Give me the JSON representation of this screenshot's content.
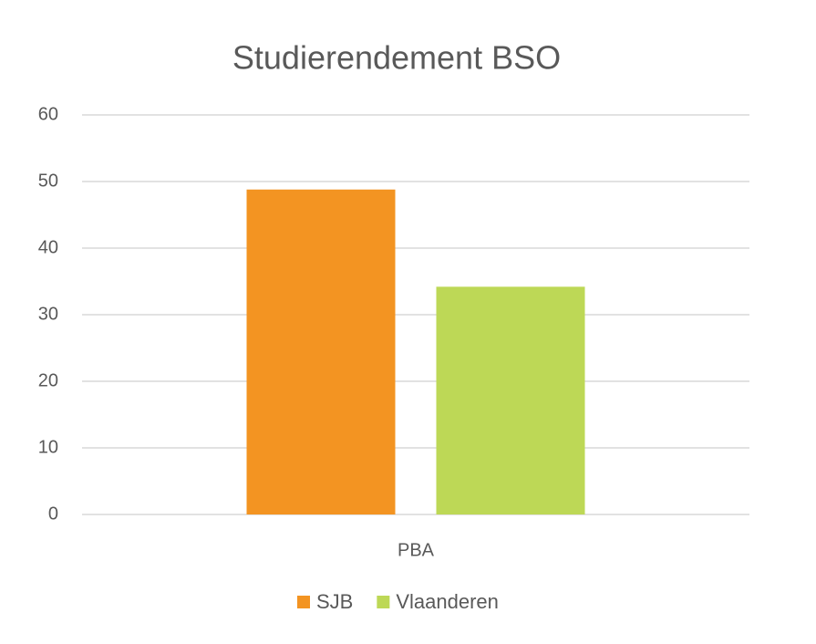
{
  "chart_data": {
    "type": "bar",
    "title": "Studierendement BSO",
    "categories": [
      "PBA"
    ],
    "series": [
      {
        "name": "SJB",
        "color": "#f39422",
        "values": [
          48.8
        ]
      },
      {
        "name": "Vlaanderen",
        "color": "#bdd856",
        "values": [
          34.2
        ]
      }
    ],
    "ylim": [
      0,
      60
    ],
    "yticks": [
      0,
      10,
      20,
      30,
      40,
      50,
      60
    ],
    "grid": true,
    "legend": "bottom"
  }
}
